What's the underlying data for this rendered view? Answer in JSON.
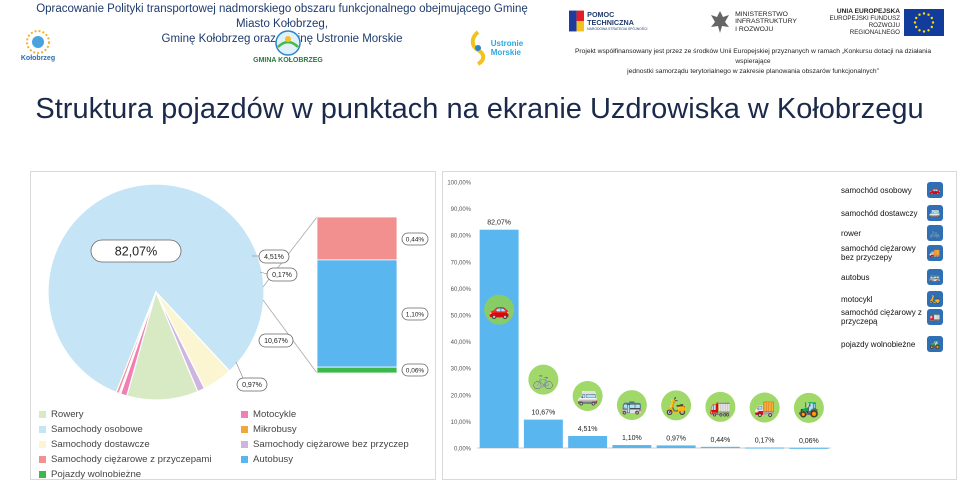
{
  "header": {
    "line1": "Opracowanie Polityki transportowej nadmorskiego obszaru funkcjonalnego obejmującego Gminę Miasto Kołobrzeg,",
    "line2": "Gminę Kołobrzeg oraz Gminę Ustronie Morskie",
    "logos": {
      "kolobrzeg": "Kołobrzeg",
      "gmina": "GMINA KOŁOBRZEG",
      "ustronie_1": "Ustronie",
      "ustronie_2": "Morskie",
      "pomoc_1": "POMOC TECHNICZNA",
      "pomoc_2": "NARODOWA STRATEGIA SPÓJNOŚCI",
      "min_1": "MINISTERSTWO",
      "min_2": "INFRASTRUKTURY",
      "min_3": "I ROZWOJU",
      "ue_1": "UNIA EUROPEJSKA",
      "ue_2": "EUROPEJSKI FUNDUSZ",
      "ue_3": "ROZWOJU REGIONALNEGO"
    },
    "project_line1": "Projekt współfinansowany jest przez ze środków Unii Europejskiej przyznanych w ramach „Konkursu dotacji na działania wspierające",
    "project_line2": "jednostki samorządu terytorialnego w zakresie planowania obszarów funkcjonalnych”"
  },
  "title": "Struktura pojazdów w punktach na ekranie Uzdrowiska w Kołobrzegu",
  "colors": {
    "rowery": "#d7eac4",
    "samochody_osobowe": "#c5e4f6",
    "samochody_dostawcze": "#fbf6d1",
    "ciezarowe_przyczepy": "#f1908f",
    "pojazdy_wolnobiezne": "#3cb94a",
    "motocykle": "#ef7fb4",
    "mikrobusy": "#f2a73b",
    "ciezarowe_bez": "#cdb5e0",
    "autobusy": "#59b6ee",
    "bar": "#59b6ee"
  },
  "chart_data": [
    {
      "type": "pie",
      "title": "",
      "slices": [
        {
          "name": "Samochody osobowe",
          "value": 82.07,
          "label": "82,07%"
        },
        {
          "name": "Samochody dostawcze",
          "value": 4.51,
          "label": "4,51%"
        },
        {
          "name": "Samochody ciężarowe bez przyczep",
          "value": 1.1,
          "label": "1,10%"
        },
        {
          "name": "Rowery",
          "value": 10.67,
          "label": "10,67%"
        },
        {
          "name": "Motocykle",
          "value": 0.97,
          "label": "0,97%"
        },
        {
          "name": "Pojazdy wolnobieżne",
          "value": 0.06,
          "label": "0,06%"
        },
        {
          "name": "Mikrobusy",
          "value": 0.17,
          "label": "0,17%"
        },
        {
          "name": "Samochody ciężarowe z przyczepami",
          "value": 0.44,
          "label": "0,44%"
        }
      ],
      "breakdown_bar": {
        "segments": [
          {
            "name": "Samochody ciężarowe z przyczepami",
            "value": 0.44,
            "label": "0,44%"
          },
          {
            "name": "Autobusy",
            "value": 1.1,
            "label": "1,10%"
          },
          {
            "name": "Pojazdy wolnobieżne",
            "value": 0.06,
            "label": "0,06%"
          }
        ]
      },
      "extra_labels": [
        "4,51%",
        "0,17%",
        "10,67%",
        "0,97%"
      ],
      "legend": [
        "Rowery",
        "Motocykle",
        "Samochody osobowe",
        "Mikrobusy",
        "Samochody dostawcze",
        "Samochody ciężarowe bez przyczep",
        "Samochody ciężarowe z przyczepami",
        "Autobusy",
        "Pojazdy wolnobieżne"
      ]
    },
    {
      "type": "bar",
      "categories": [
        "samochód osobowy",
        "rower",
        "samochód dostawczy",
        "autobus",
        "motocykl",
        "samochód ciężarowy z przyczepą",
        "samochód ciężarowy bez przyczepy",
        "pojazdy wolnobieżne"
      ],
      "values": [
        82.07,
        10.67,
        4.51,
        1.1,
        0.97,
        0.44,
        0.17,
        0.06
      ],
      "value_labels": [
        "82,07%",
        "10,67%",
        "4,51%",
        "1,10%",
        "0,97%",
        "0,44%",
        "0,17%",
        "0,06%"
      ],
      "ylim": [
        0,
        100
      ],
      "yticks": [
        "0,00%",
        "10,00%",
        "20,00%",
        "30,00%",
        "40,00%",
        "50,00%",
        "60,00%",
        "70,00%",
        "80,00%",
        "90,00%",
        "100,00%"
      ],
      "grid": false,
      "icon_legend": [
        {
          "label": "samochód osobowy",
          "icon": "car-icon"
        },
        {
          "label": "samochód dostawczy",
          "icon": "van-icon"
        },
        {
          "label": "rower",
          "icon": "bicycle-icon"
        },
        {
          "label": "samochód ciężarowy bez przyczepy",
          "icon": "truck-icon"
        },
        {
          "label": "autobus",
          "icon": "bus-icon"
        },
        {
          "label": "motocykl",
          "icon": "motorcycle-icon"
        },
        {
          "label": "samochód ciężarowy z przyczepą",
          "icon": "trailer-truck-icon"
        },
        {
          "label": "pojazdy wolnobieżne",
          "icon": "tractor-icon"
        }
      ],
      "bar_icons": [
        "car-icon",
        "bicycle-icon",
        "van-icon",
        "bus-icon",
        "motorcycle-icon",
        "trailer-truck-icon",
        "truck-icon",
        "tractor-icon"
      ]
    }
  ]
}
